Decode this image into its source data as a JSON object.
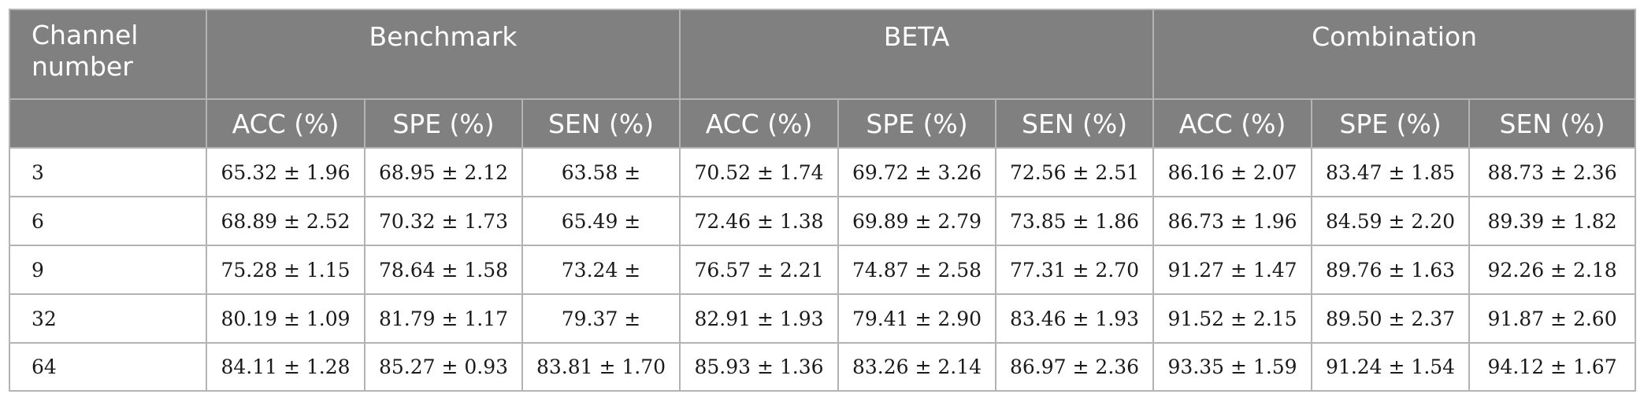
{
  "header": {
    "channel_number": "Channel number",
    "groups": [
      "Benchmark",
      "BETA",
      "Combination"
    ],
    "metrics": [
      "ACC (%)",
      "SPE (%)",
      "SEN (%)",
      "ACC (%)",
      "SPE (%)",
      "SEN (%)",
      "ACC (%)",
      "SPE (%)",
      "SEN (%)"
    ]
  },
  "rows": [
    {
      "channel": "3",
      "cells": [
        "65.32 ± 1.96",
        "68.95 ± 2.12",
        "63.58 ±",
        "70.52 ± 1.74",
        "69.72 ± 3.26",
        "72.56 ± 2.51",
        "86.16 ± 2.07",
        "83.47 ± 1.85",
        "88.73 ± 2.36"
      ]
    },
    {
      "channel": "6",
      "cells": [
        "68.89 ± 2.52",
        "70.32 ± 1.73",
        "65.49 ±",
        "72.46 ± 1.38",
        "69.89 ± 2.79",
        "73.85 ± 1.86",
        "86.73 ± 1.96",
        "84.59 ± 2.20",
        "89.39 ± 1.82"
      ]
    },
    {
      "channel": "9",
      "cells": [
        "75.28 ± 1.15",
        "78.64 ± 1.58",
        "73.24 ±",
        "76.57 ± 2.21",
        "74.87 ± 2.58",
        "77.31 ± 2.70",
        "91.27 ± 1.47",
        "89.76 ± 1.63",
        "92.26 ± 2.18"
      ]
    },
    {
      "channel": "32",
      "cells": [
        "80.19 ± 1.09",
        "81.79 ± 1.17",
        "79.37 ±",
        "82.91 ± 1.93",
        "79.41 ± 2.90",
        "83.46 ± 1.93",
        "91.52 ± 2.15",
        "89.50 ± 2.37",
        "91.87 ± 2.60"
      ]
    },
    {
      "channel": "64",
      "cells": [
        "84.11 ± 1.28",
        "85.27 ± 0.93",
        "83.81 ± 1.70",
        "85.93 ± 1.36",
        "83.26 ± 2.14",
        "86.97 ± 2.36",
        "93.35 ± 1.59",
        "91.24 ± 1.54",
        "94.12 ± 1.67"
      ]
    }
  ]
}
